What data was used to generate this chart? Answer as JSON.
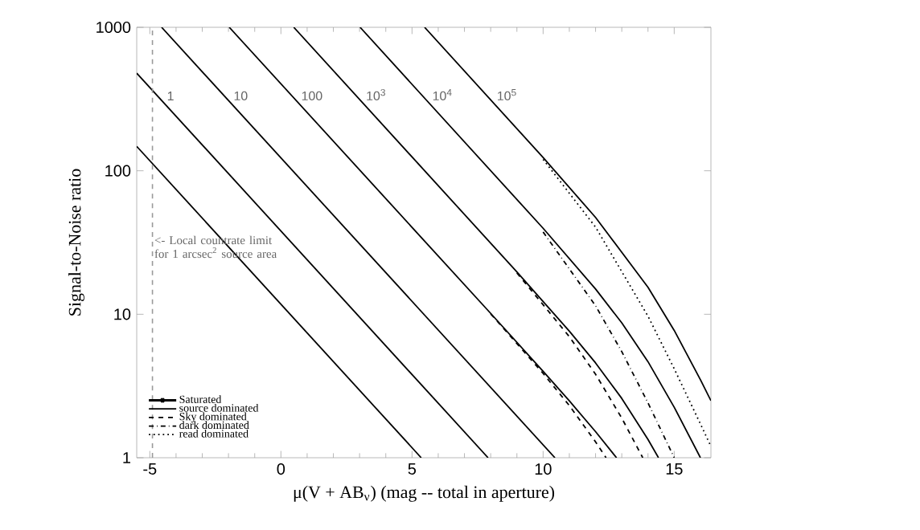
{
  "chart_data": {
    "type": "line",
    "xlabel": "μ(V + AB$_{ν}$) (mag -- total in aperture)",
    "ylabel": "Signal-to-Noise ratio",
    "log": "y",
    "xlim": [
      -5.5,
      16.4
    ],
    "ylim": [
      1,
      1000
    ],
    "xticks": [
      -5,
      0,
      5,
      10,
      15
    ],
    "yticks": [
      1,
      10,
      100,
      1000
    ],
    "legend": "bottom left",
    "color": "#000000",
    "series": [
      {
        "name": "Saturated",
        "marker": "cross"
      },
      {
        "name": "source dominated",
        "line_style": "solid",
        "x": [
          -5.5,
          5.35
        ],
        "values": [
          148,
          1
        ]
      },
      {
        "line_style": "solid",
        "x": [
          -5.5,
          7.9
        ],
        "values": [
          479,
          1
        ]
      },
      {
        "line_style": "solid",
        "x": [
          -4.55,
          10.45
        ],
        "values": [
          1000,
          1
        ]
      },
      {
        "line_style": "solid",
        "x": [
          -1.97,
          8,
          10,
          11,
          12,
          12.8
        ],
        "values": [
          1000,
          10.14,
          4.0,
          2.49,
          1.52,
          1
        ]
      },
      {
        "name": "Sky dominated",
        "line_style": "dashed",
        "x": [
          8,
          10,
          11,
          12,
          12.4
        ],
        "values": [
          10.07,
          3.87,
          2.31,
          1.29,
          1
        ]
      },
      {
        "line_style": "solid",
        "x": [
          0.49,
          9,
          11,
          12,
          13,
          14,
          14.4
        ],
        "values": [
          1000,
          19.73,
          7.62,
          4.58,
          2.59,
          1.34,
          1
        ]
      },
      {
        "line_style": "dashed",
        "x": [
          9,
          11,
          12,
          13,
          13.8
        ],
        "values": [
          19.42,
          6.98,
          3.82,
          1.89,
          1
        ]
      },
      {
        "line_style": "solid",
        "x": [
          3.02,
          10,
          12,
          13,
          14,
          15,
          16
        ],
        "values": [
          1000,
          39.75,
          15.0,
          8.71,
          4.67,
          2.25,
          1
        ]
      },
      {
        "name": "dark dominated",
        "line_style": "dashdot",
        "x": [
          10,
          12,
          13,
          14,
          15
        ],
        "values": [
          37.45,
          11.46,
          5.49,
          2.41,
          1
        ]
      },
      {
        "line_style": "solid",
        "x": [
          5.48,
          10,
          12,
          14,
          15,
          16,
          16.4
        ],
        "values": [
          1000,
          123.7,
          47.3,
          15.43,
          7.72,
          3.5,
          2.5
        ]
      },
      {
        "name": "read dominated",
        "line_style": "dotted",
        "x": [
          10,
          12,
          14,
          15,
          16,
          16.4
        ],
        "values": [
          120.1,
          40.5,
          9.7,
          4.17,
          1.72,
          1.2
        ]
      }
    ],
    "ref_lines": [
      {
        "axis": "x",
        "value": -4.9,
        "label": "<- Local countrate limit for 1 arcsec$^{2}$ source area",
        "line_style": "dashed",
        "color": "#999999"
      }
    ],
    "annotations": [
      {
        "text": "1",
        "x": -4.48,
        "y": 300
      },
      {
        "text": "10",
        "x": -1.94,
        "y": 300
      },
      {
        "text": "100",
        "x": 0.64,
        "y": 300
      },
      {
        "text": "10$^{3}$",
        "x": 3.11,
        "y": 300
      },
      {
        "text": "10$^{4}$",
        "x": 5.64,
        "y": 300
      },
      {
        "text": "10$^{5}$",
        "x": 8.1,
        "y": 300
      }
    ]
  }
}
